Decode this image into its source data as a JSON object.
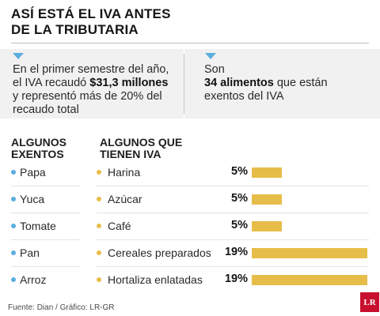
{
  "header": {
    "title_line1": "ASÍ ESTÁ EL IVA ANTES",
    "title_line2": "DE LA TRIBUTARIA"
  },
  "panels": {
    "left": {
      "pre": "En el primer semestre del año, el IVA recaudó ",
      "bold": "$31,3 millones",
      "post": " y representó más de 20% del recaudo total"
    },
    "right": {
      "pre": "Son",
      "bold": "34 alimentos",
      "post": " que están exentos del IVA"
    }
  },
  "columns": {
    "exentos_head_1": "ALGUNOS",
    "exentos_head_2": "EXENTOS",
    "iva_head_1": "ALGUNOS QUE",
    "iva_head_2": "TIENEN IVA"
  },
  "exentos": [
    "Papa",
    "Yuca",
    "Tomate",
    "Pan",
    "Arroz"
  ],
  "chart_data": {
    "type": "bar",
    "orientation": "horizontal",
    "categories": [
      "Harina",
      "Azúcar",
      "Café",
      "Cereales preparados",
      "Hortaliza enlatadas"
    ],
    "values": [
      5,
      5,
      5,
      19,
      19
    ],
    "value_labels": [
      "5%",
      "5%",
      "5%",
      "19%",
      "19%"
    ],
    "xlim": [
      0,
      19
    ],
    "title": "",
    "xlabel": "",
    "ylabel": "",
    "grid": false,
    "colors": {
      "bar": "#e7bd4a",
      "bullet_exentos": "#5aaee0",
      "bullet_iva": "#e7bd4a"
    }
  },
  "footer": {
    "source": "Fuente: Dian / Gráfico: LR-GR",
    "logo": "LR"
  }
}
